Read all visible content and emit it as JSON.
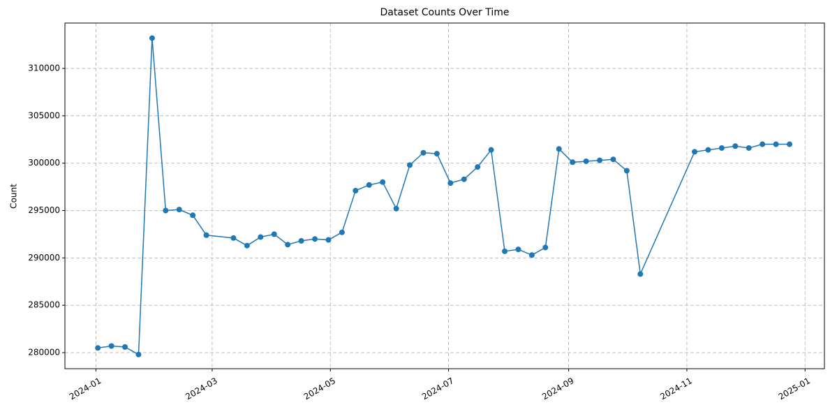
{
  "chart_data": {
    "type": "line",
    "title": "Dataset Counts Over Time",
    "y_label": "Count",
    "x": [
      "2024-01-02",
      "2024-01-09",
      "2024-01-16",
      "2024-01-23",
      "2024-01-30",
      "2024-02-06",
      "2024-02-13",
      "2024-02-20",
      "2024-02-27",
      "2024-03-12",
      "2024-03-19",
      "2024-03-26",
      "2024-04-02",
      "2024-04-09",
      "2024-04-16",
      "2024-04-23",
      "2024-04-30",
      "2024-05-07",
      "2024-05-14",
      "2024-05-21",
      "2024-05-28",
      "2024-06-04",
      "2024-06-11",
      "2024-06-18",
      "2024-06-25",
      "2024-07-02",
      "2024-07-09",
      "2024-07-16",
      "2024-07-23",
      "2024-07-30",
      "2024-08-06",
      "2024-08-13",
      "2024-08-20",
      "2024-08-27",
      "2024-09-03",
      "2024-09-10",
      "2024-09-17",
      "2024-09-24",
      "2024-10-01",
      "2024-10-08",
      "2024-11-05",
      "2024-11-12",
      "2024-11-19",
      "2024-11-26",
      "2024-12-03",
      "2024-12-10",
      "2024-12-17",
      "2024-12-24"
    ],
    "series": [
      {
        "name": "Count",
        "color": "#1f77b4",
        "values": [
          280500,
          280700,
          280600,
          279800,
          313200,
          295000,
          295100,
          294500,
          292400,
          292100,
          291300,
          292200,
          292500,
          291400,
          291800,
          292000,
          291900,
          292700,
          297100,
          297700,
          298000,
          295200,
          299800,
          301100,
          301000,
          297900,
          298300,
          299600,
          301400,
          290700,
          290900,
          290300,
          291100,
          301500,
          300100,
          300200,
          300300,
          300400,
          299200,
          288300,
          301200,
          301400,
          301600,
          301800,
          301600,
          302000,
          302000,
          302000
        ]
      }
    ],
    "xlim": [
      "2023-12-16",
      "2025-01-11"
    ],
    "xticks": [
      {
        "value": "2024-01-01",
        "label": "2024-01"
      },
      {
        "value": "2024-03-01",
        "label": "2024-03"
      },
      {
        "value": "2024-05-01",
        "label": "2024-05"
      },
      {
        "value": "2024-07-01",
        "label": "2024-07"
      },
      {
        "value": "2024-09-01",
        "label": "2024-09"
      },
      {
        "value": "2024-11-01",
        "label": "2024-11"
      },
      {
        "value": "2025-01-01",
        "label": "2025-01"
      }
    ],
    "ylim": [
      278305,
      314790
    ],
    "yticks": [
      280000,
      285000,
      290000,
      295000,
      300000,
      305000,
      310000
    ],
    "grid": true
  }
}
